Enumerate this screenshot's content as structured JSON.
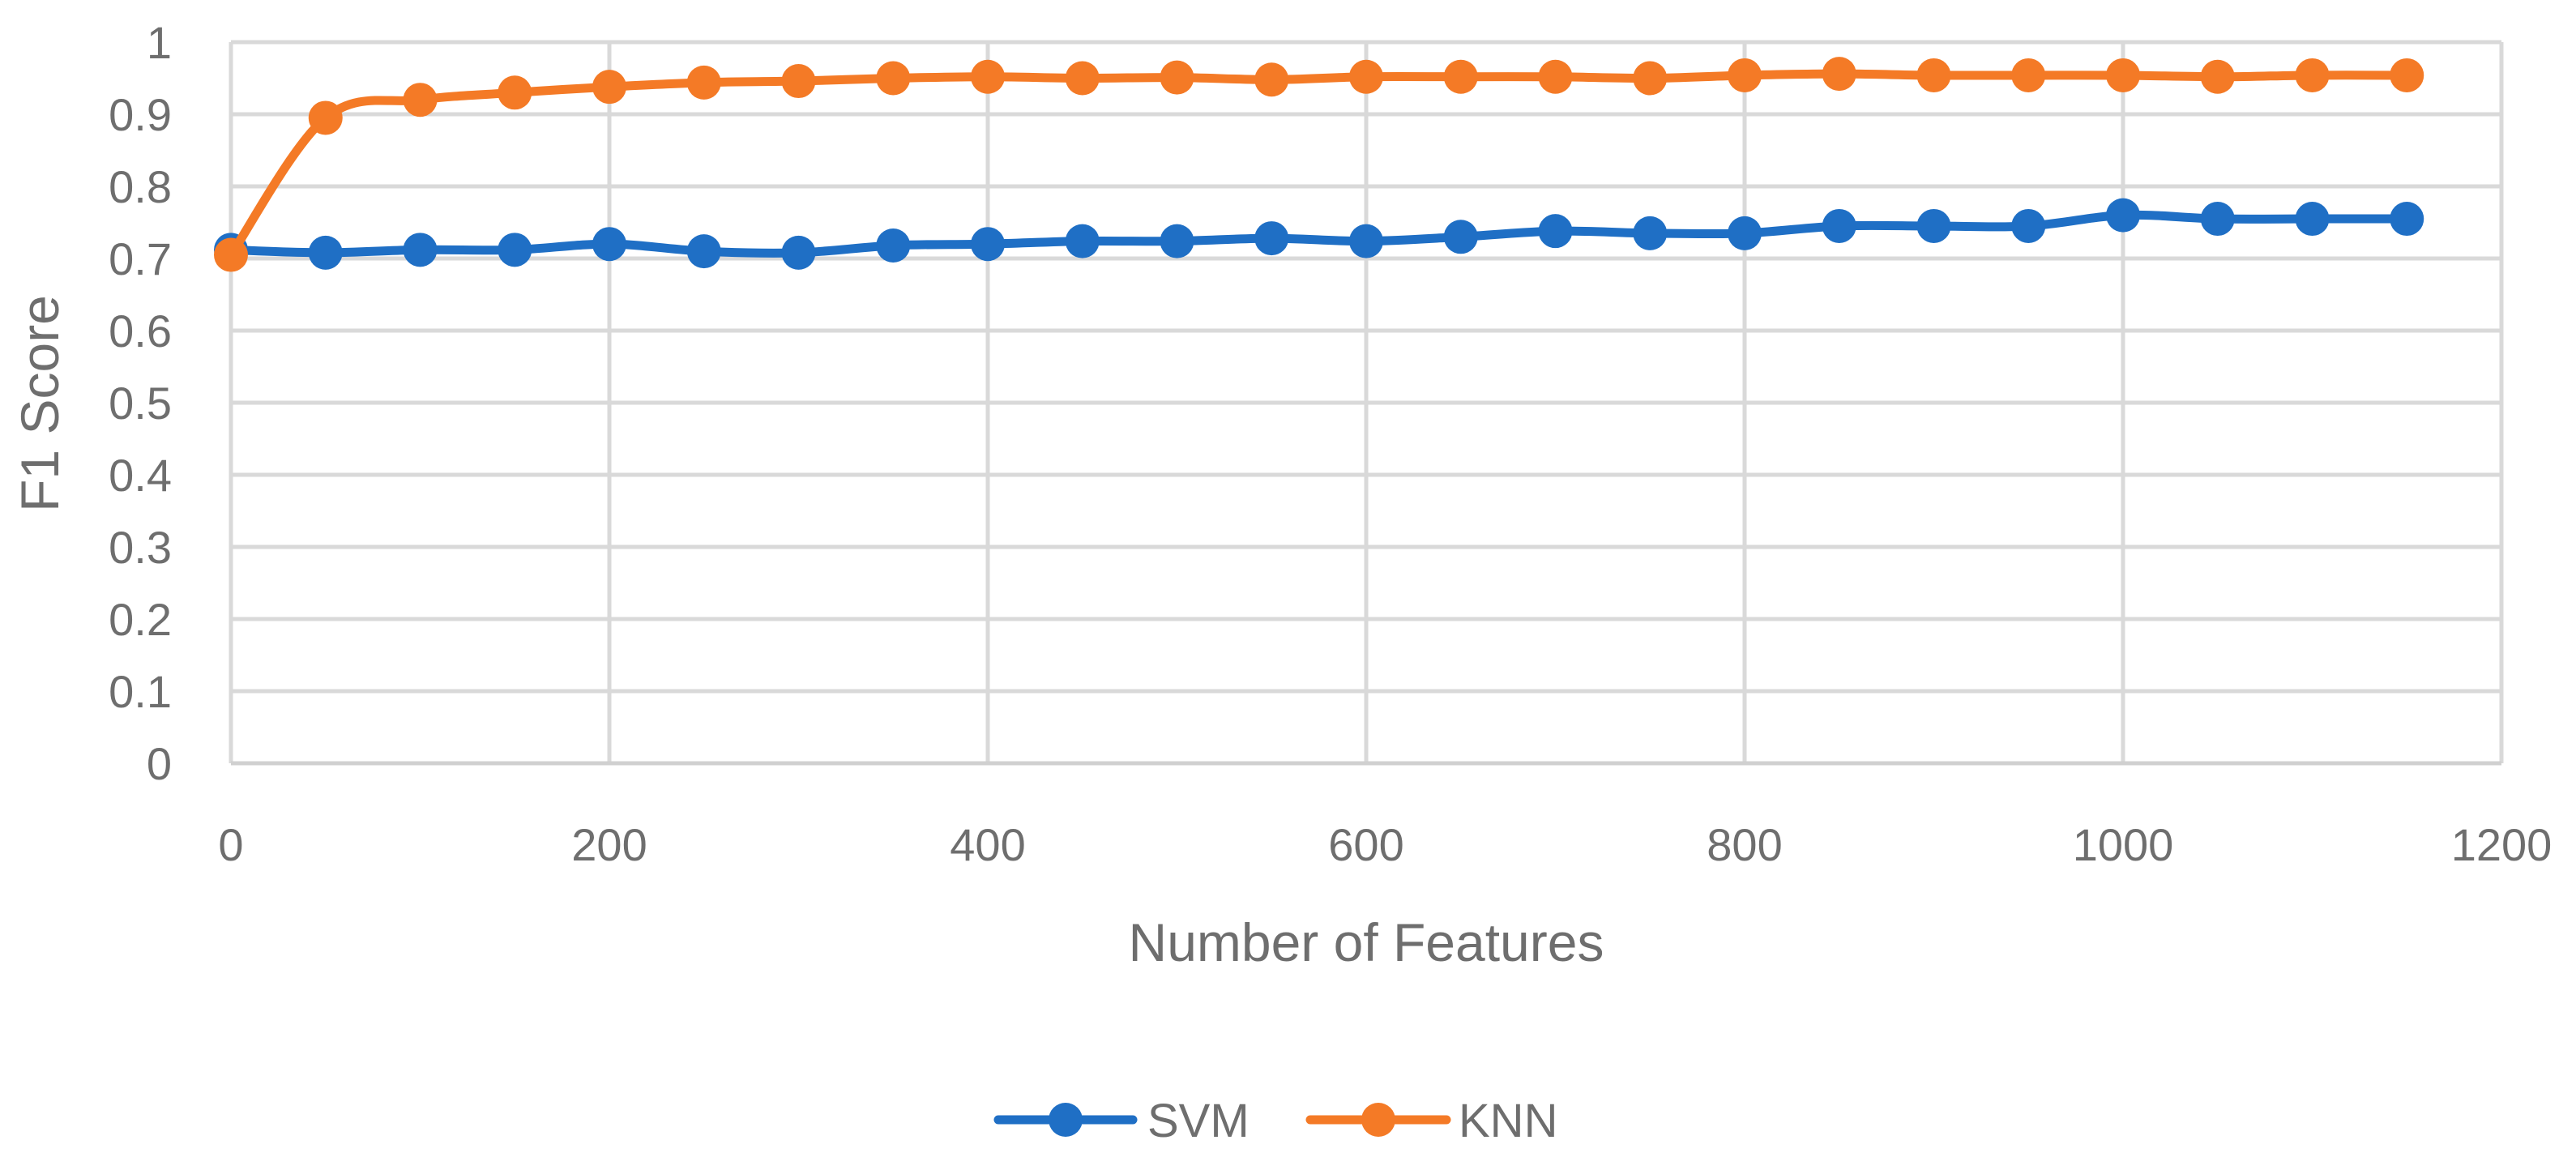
{
  "chart_data": {
    "type": "line",
    "title": "",
    "xlabel": "Number of Features",
    "ylabel": "F1 Score",
    "xlim": [
      0,
      1200
    ],
    "ylim": [
      0,
      1
    ],
    "x_ticks": [
      "0",
      "200",
      "400",
      "600",
      "800",
      "1000",
      "1200"
    ],
    "y_ticks": [
      "0",
      "0.1",
      "0.2",
      "0.3",
      "0.4",
      "0.5",
      "0.6",
      "0.7",
      "0.8",
      "0.9",
      "1"
    ],
    "grid": true,
    "legend_position": "bottom",
    "x": [
      0,
      50,
      100,
      150,
      200,
      250,
      300,
      350,
      400,
      450,
      500,
      550,
      600,
      650,
      700,
      750,
      800,
      850,
      900,
      950,
      1000,
      1050,
      1100,
      1150
    ],
    "series": [
      {
        "name": "SVM",
        "color": "#1f6fc5",
        "values": [
          0.712,
          0.708,
          0.712,
          0.712,
          0.72,
          0.71,
          0.708,
          0.718,
          0.72,
          0.724,
          0.724,
          0.728,
          0.724,
          0.73,
          0.738,
          0.735,
          0.735,
          0.745,
          0.745,
          0.745,
          0.76,
          0.755,
          0.755,
          0.755
        ]
      },
      {
        "name": "KNN",
        "color": "#f47a26",
        "values": [
          0.705,
          0.895,
          0.92,
          0.93,
          0.938,
          0.944,
          0.946,
          0.95,
          0.952,
          0.95,
          0.951,
          0.948,
          0.952,
          0.952,
          0.952,
          0.95,
          0.954,
          0.956,
          0.954,
          0.954,
          0.954,
          0.952,
          0.954,
          0.954
        ]
      }
    ]
  }
}
